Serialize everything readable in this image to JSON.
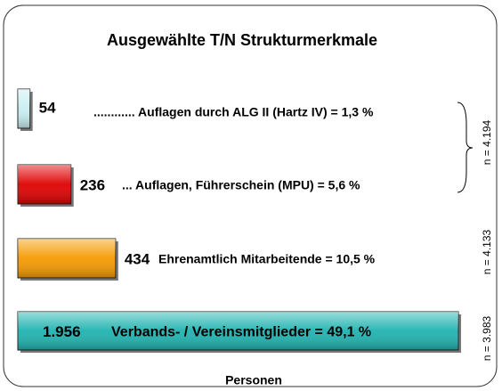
{
  "chart_data": {
    "type": "bar",
    "orientation": "horizontal",
    "title": "Ausgewählte T/N Strukturmerkmale",
    "categories": [
      "............ Auflagen durch ALG II (Hartz IV) =  1,3 %",
      "... Auflagen, Führerschein (MPU) =  5,6 %",
      "Ehrenamtlich Mitarbeitende = 10,5 %",
      "Verbands- /  Vereinsmitglieder  =  49,1 %"
    ],
    "values": [
      54,
      236,
      434,
      1956
    ],
    "value_labels": [
      "54",
      "236",
      "434",
      "1.956"
    ],
    "colors": [
      "#c8eef2",
      "#e00000",
      "#f59a00",
      "#1fb3b0"
    ],
    "xlabel": "Personen",
    "annotations": [
      "n = 4.194",
      "n = 4.133",
      "n = 3.983"
    ]
  }
}
